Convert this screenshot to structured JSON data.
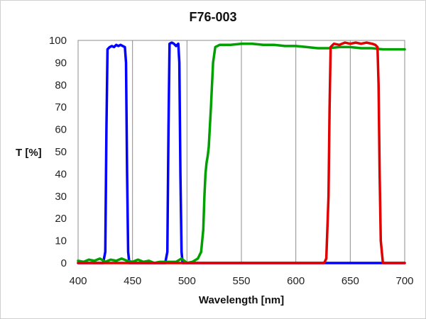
{
  "chart_data": {
    "type": "line",
    "title": "F76-003",
    "xlabel": "Wavelength [nm]",
    "ylabel": "T [%]",
    "xlim": [
      400,
      700
    ],
    "ylim": [
      0,
      100
    ],
    "xticks": [
      400,
      450,
      500,
      550,
      600,
      650,
      700
    ],
    "yticks": [
      0,
      10,
      20,
      30,
      40,
      50,
      60,
      70,
      80,
      90,
      100
    ],
    "grid": "vertical",
    "legend": "none",
    "series": [
      {
        "color": "#0000ff",
        "x": [
          400,
          423,
          425,
          426,
          427,
          429,
          431,
          433,
          435,
          437,
          439,
          441,
          443,
          444,
          445,
          446,
          447,
          480,
          482,
          483,
          484,
          486,
          488,
          490,
          492,
          493,
          494,
          495,
          496,
          700
        ],
        "y": [
          0,
          0,
          5,
          60,
          96,
          97,
          97.5,
          97,
          98,
          97.5,
          98,
          97.5,
          97,
          90,
          40,
          5,
          0,
          0,
          5,
          60,
          98.5,
          99,
          98.5,
          97.5,
          98.5,
          90,
          40,
          5,
          0,
          0
        ]
      },
      {
        "color": "#00a000",
        "x": [
          400,
          405,
          410,
          415,
          420,
          425,
          430,
          435,
          440,
          445,
          450,
          455,
          460,
          465,
          470,
          475,
          480,
          485,
          490,
          495,
          500,
          505,
          510,
          513,
          515,
          516,
          517,
          518,
          519,
          520,
          522,
          524,
          526,
          530,
          540,
          550,
          560,
          570,
          580,
          590,
          600,
          610,
          620,
          630,
          640,
          650,
          660,
          670,
          680,
          690,
          700
        ],
        "y": [
          1,
          0.5,
          1.5,
          1,
          2,
          0.5,
          1.5,
          1,
          2,
          1,
          0.5,
          1.5,
          0.5,
          1,
          0,
          0.5,
          0.5,
          0.5,
          0.5,
          2,
          0,
          0.5,
          2,
          5,
          15,
          30,
          40,
          45,
          48,
          52,
          70,
          90,
          97,
          98,
          98,
          98.5,
          98.5,
          98,
          98,
          97.5,
          97.5,
          97,
          96.5,
          96.5,
          97,
          97,
          96.5,
          96.5,
          96,
          96,
          96
        ]
      },
      {
        "color": "#e00000",
        "x": [
          400,
          626,
          628,
          630,
          631,
          632,
          635,
          640,
          645,
          650,
          655,
          660,
          665,
          670,
          673,
          675,
          676,
          677,
          678,
          680,
          700
        ],
        "y": [
          0,
          0,
          2,
          30,
          70,
          97,
          98.5,
          98,
          99,
          98.5,
          99,
          98.5,
          99,
          98.5,
          98,
          97,
          80,
          40,
          10,
          0,
          0
        ]
      }
    ]
  }
}
